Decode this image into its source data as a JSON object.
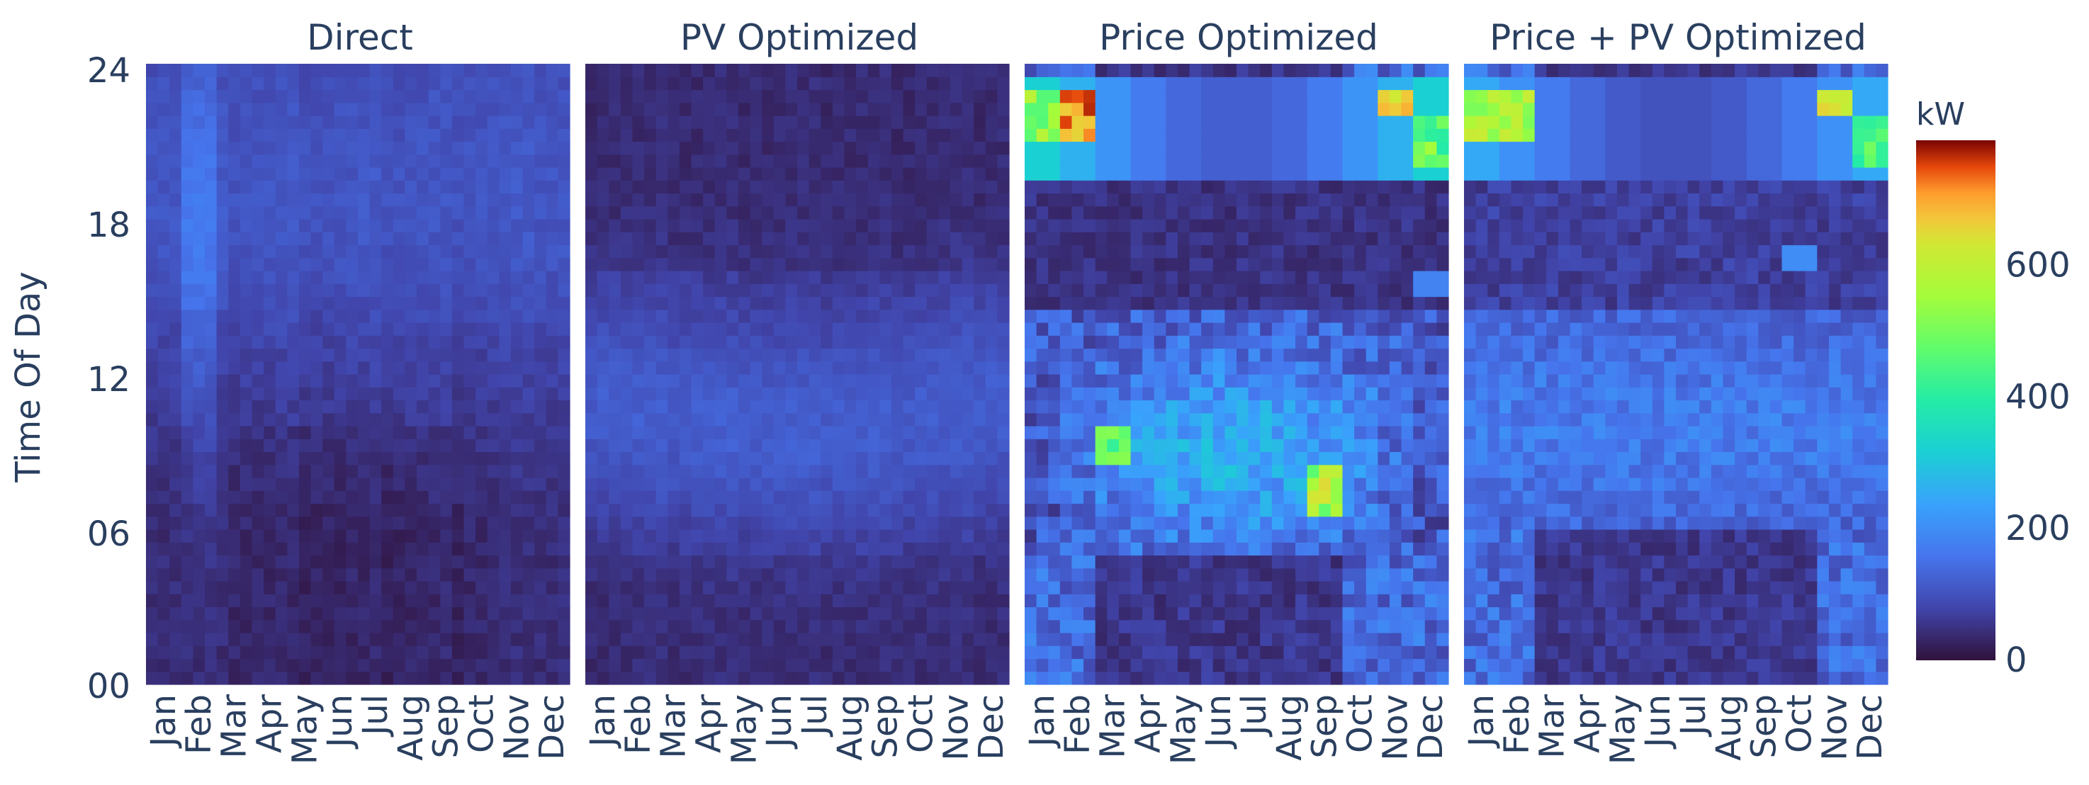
{
  "chart_data": {
    "type": "heatmap",
    "ylabel": "Time Of Day",
    "y_ticks": [
      "00",
      "06",
      "12",
      "18",
      "24"
    ],
    "ylim": [
      0,
      24
    ],
    "months": [
      "Jan",
      "Feb",
      "Mar",
      "Apr",
      "May",
      "Jun",
      "Jul",
      "Aug",
      "Sep",
      "Oct",
      "Nov",
      "Dec"
    ],
    "colorbar": {
      "title": "kW",
      "range": [
        0,
        790
      ],
      "ticks": [
        "0",
        "200",
        "400",
        "600"
      ],
      "tick_values": [
        0,
        200,
        400,
        600
      ],
      "colorscale": "turbo"
    },
    "panels": [
      {
        "title": "Direct",
        "profile": "direct"
      },
      {
        "title": "PV Optimized",
        "profile": "pv"
      },
      {
        "title": "Price Optimized",
        "profile": "price"
      },
      {
        "title": "Price + PV Optimized",
        "profile": "pricepv"
      }
    ],
    "columns_per_month": 3,
    "rows_per_day": 48
  }
}
